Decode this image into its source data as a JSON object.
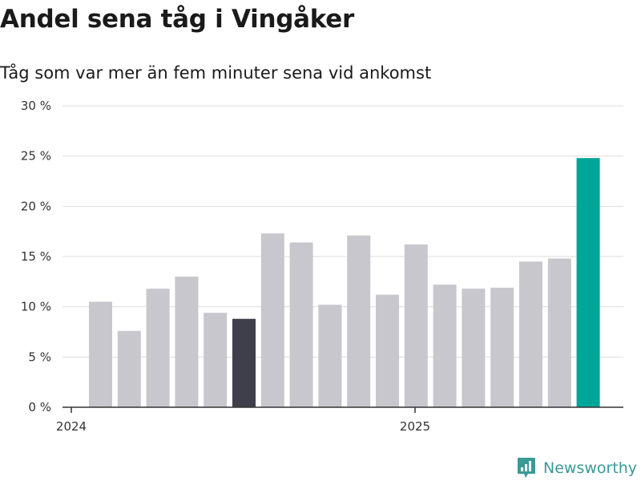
{
  "title": "Andel sena tåg i Vingåker",
  "subtitle": "Tåg som var mer än fem minuter sena vid ankomst",
  "brand": {
    "name": "Newsworthy",
    "color": "#3a9a96"
  },
  "colors": {
    "bar": "#c8c7ce",
    "highlight": "#3f3e4b",
    "latest": "#00a59a",
    "grid": "#dddddd",
    "axis": "#333333"
  },
  "chart_data": {
    "type": "bar",
    "values": [
      10.5,
      7.6,
      11.8,
      13.0,
      9.4,
      8.8,
      17.3,
      16.4,
      10.2,
      17.1,
      11.2,
      16.2,
      12.2,
      11.8,
      11.9,
      14.5,
      14.8,
      24.8
    ],
    "highlight_index": 5,
    "latest_index": 17,
    "ylim": [
      0,
      30
    ],
    "yticks": [
      0,
      5,
      10,
      15,
      20,
      25,
      30
    ],
    "ytick_labels": [
      "0 %",
      "5 %",
      "10 %",
      "15 %",
      "20 %",
      "25 %",
      "30 %"
    ],
    "xtick_labels": [
      {
        "label": "2024",
        "index": 0
      },
      {
        "label": "2025",
        "index": 12
      }
    ],
    "grid": true
  }
}
